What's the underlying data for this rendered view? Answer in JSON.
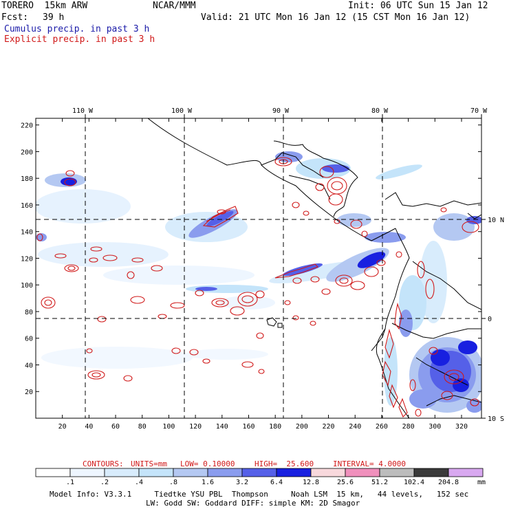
{
  "header": {
    "model": "TORERO  15km ARW",
    "org": "NCAR/MMM",
    "init": "Init: 06 UTC Sun 15 Jan 12",
    "fcst_label": "Fcst:",
    "fcst_hours": "39 h",
    "valid": "Valid: 21 UTC Mon 16 Jan 12 (15 CST Mon 16 Jan 12)",
    "line1": "Cumulus precip. in past 3 h",
    "line2": "Explicit precip. in past 3 h"
  },
  "chart_data": {
    "type": "heatmap",
    "title": "Cumulus / explicit precip. in past 3 h",
    "x_grid_ticks": [
      "20",
      "40",
      "60",
      "80",
      "100",
      "120",
      "140",
      "160",
      "180",
      "200",
      "220",
      "240",
      "260",
      "280",
      "300",
      "320"
    ],
    "y_grid_ticks": [
      "20",
      "40",
      "60",
      "80",
      "100",
      "120",
      "140",
      "160",
      "180",
      "200",
      "220"
    ],
    "xlim": [
      0,
      335
    ],
    "ylim": [
      0,
      225
    ],
    "lon_labels": [
      "110 W",
      "100 W",
      "90 W",
      "80 W",
      "70 W"
    ],
    "lat_labels": [
      "10 N",
      "0",
      "10 S"
    ],
    "contour_info": {
      "label": "CONTOURS:",
      "units": "UNITS=mm",
      "low": "LOW= 0.10000",
      "high": "HIGH=  25.600",
      "interval": "INTERVAL= 4.0000"
    },
    "legend": {
      "levels": [
        ".1",
        ".2",
        ".4",
        ".8",
        "1.6",
        "3.2",
        "6.4",
        "12.8",
        "25.6",
        "51.2",
        "102.4",
        "204.8"
      ],
      "colors": [
        "#ffffff",
        "#eef6ff",
        "#d8ecfc",
        "#c4e4fa",
        "#b4c8f2",
        "#8a9cee",
        "#5560e8",
        "#1820e0",
        "#f8d8dc",
        "#f090bc",
        "#bcbcbc",
        "#3a3a3a",
        "#d8a8f0"
      ],
      "units": "mm"
    }
  },
  "footer": {
    "line1": "Model Info: V3.3.1     Tiedtke YSU PBL  Thompson     Noah LSM  15 km,   44 levels,   152 sec",
    "line2": "LW: Godd SW: Goddard DIFF: simple KM: 2D Smagor"
  }
}
